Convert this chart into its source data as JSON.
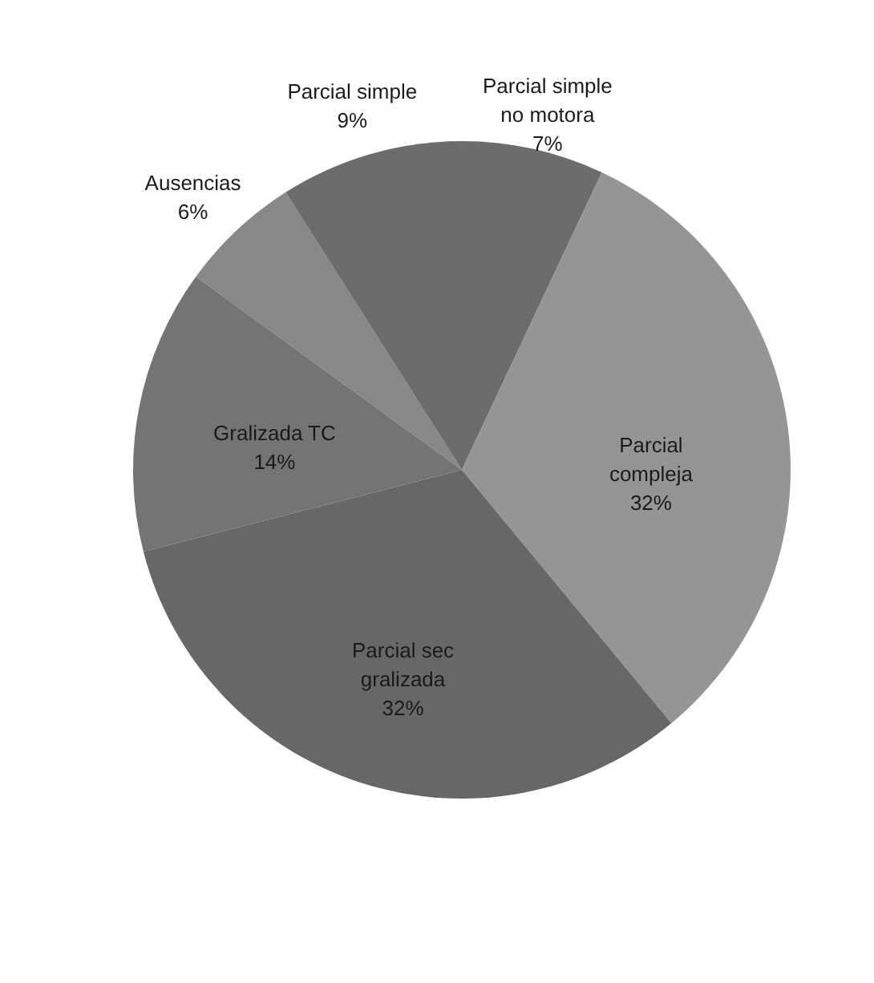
{
  "chart_data": {
    "type": "pie",
    "categories": [
      "Parcial simple no motora",
      "Parcial compleja",
      "Parcial sec gralizada",
      "Gralizada TC",
      "Ausencias",
      "Parcial simple"
    ],
    "values": [
      7,
      32,
      32,
      14,
      6,
      9
    ],
    "colors": [
      "#6c6c6c",
      "#959595",
      "#676767",
      "#747474",
      "#888888",
      "#6c6c6c"
    ],
    "value_labels": [
      "7%",
      "32%",
      "32%",
      "14%",
      "6%",
      "9%"
    ]
  }
}
